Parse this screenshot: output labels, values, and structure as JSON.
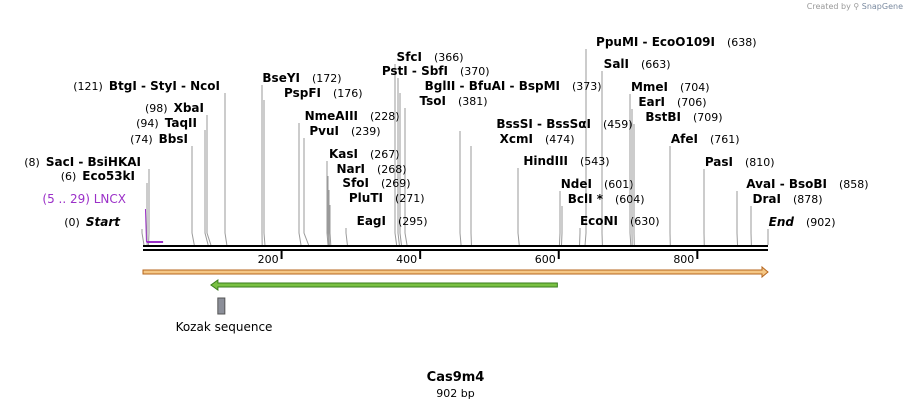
{
  "credit": {
    "prefix": "Created by",
    "brand": "SnapGene"
  },
  "plasmid": {
    "name": "Cas9m4",
    "length_text": "902 bp",
    "length": 902
  },
  "ruler": {
    "ticks": [
      "200",
      "400",
      "600",
      "800"
    ],
    "tick_values": [
      200,
      400,
      600,
      800
    ]
  },
  "feature_labels": [
    {
      "name": "Kozak sequence",
      "start": 108,
      "end": 118,
      "color": "#8c8f99",
      "kind": "misc_feature"
    },
    {
      "name": "LNCX",
      "range": "(5 .. 29)",
      "start": 5,
      "end": 29,
      "color": "#9b30c8",
      "kind": "primer"
    }
  ],
  "features": [
    {
      "name": "main-orf",
      "start": 0,
      "end": 902,
      "direction": "forward",
      "color": "#f5c785",
      "outline": "#b5651d"
    },
    {
      "name": "green-orf",
      "start": 98,
      "end": 598,
      "direction": "reverse",
      "color": "#7ac143",
      "outline": "#3a7d1e"
    }
  ],
  "sites": [
    {
      "text": "Start",
      "pos": "(0)",
      "value": 0,
      "italic": true
    },
    {
      "text": "Eco53kI",
      "pos": "(6)",
      "value": 6
    },
    {
      "text": "SacI  - BsiHKAI",
      "pos": "(8)",
      "value": 8
    },
    {
      "text": "BbsI",
      "pos": "(74)",
      "value": 74
    },
    {
      "text": "TaqII",
      "pos": "(94)",
      "value": 94
    },
    {
      "text": "XbaI",
      "pos": "(98)",
      "value": 98
    },
    {
      "text": "BtgI  - StyI  - NcoI",
      "pos": "(121)",
      "value": 121
    },
    {
      "text": "BseYI",
      "pos": "(172)",
      "value": 172
    },
    {
      "text": "PspFI",
      "pos": "(176)",
      "value": 176
    },
    {
      "text": "NmeAIII",
      "pos": "(228)",
      "value": 228
    },
    {
      "text": "PvuI",
      "pos": "(239)",
      "value": 239
    },
    {
      "text": "KasI",
      "pos": "(267)",
      "value": 267
    },
    {
      "text": "NarI",
      "pos": "(268)",
      "value": 268
    },
    {
      "text": "SfoI",
      "pos": "(269)",
      "value": 269
    },
    {
      "text": "PluTI",
      "pos": "(271)",
      "value": 271
    },
    {
      "text": "EagI",
      "pos": "(295)",
      "value": 295
    },
    {
      "text": "SfcI",
      "pos": "(366)",
      "value": 366
    },
    {
      "text": "PstI  - SbfI",
      "pos": "(370)",
      "value": 370
    },
    {
      "text": "BglII  - BfuAI  - BspMI",
      "pos": "(373)",
      "value": 373
    },
    {
      "text": "TsoI",
      "pos": "(381)",
      "value": 381
    },
    {
      "text": "BssSI  - BssSαI",
      "pos": "(459)",
      "value": 459
    },
    {
      "text": "XcmI",
      "pos": "(474)",
      "value": 474
    },
    {
      "text": "HindIII",
      "pos": "(543)",
      "value": 543
    },
    {
      "text": "NdeI",
      "pos": "(601)",
      "value": 601
    },
    {
      "text": "BclI *",
      "pos": "(604)",
      "value": 604
    },
    {
      "text": "EcoNI",
      "pos": "(630)",
      "value": 630
    },
    {
      "text": "PpuMI  - EcoO109I",
      "pos": "(638)",
      "value": 638
    },
    {
      "text": "SalI",
      "pos": "(663)",
      "value": 663
    },
    {
      "text": "MmeI",
      "pos": "(704)",
      "value": 704
    },
    {
      "text": "EarI",
      "pos": "(706)",
      "value": 706
    },
    {
      "text": "BstBI",
      "pos": "(709)",
      "value": 709
    },
    {
      "text": "AfeI",
      "pos": "(761)",
      "value": 761
    },
    {
      "text": "PasI",
      "pos": "(810)",
      "value": 810
    },
    {
      "text": "AvaI  - BsoBI",
      "pos": "(858)",
      "value": 858
    },
    {
      "text": "DraI",
      "pos": "(878)",
      "value": 878
    },
    {
      "text": "End",
      "pos": "(902)",
      "value": 902,
      "italic": true
    }
  ]
}
